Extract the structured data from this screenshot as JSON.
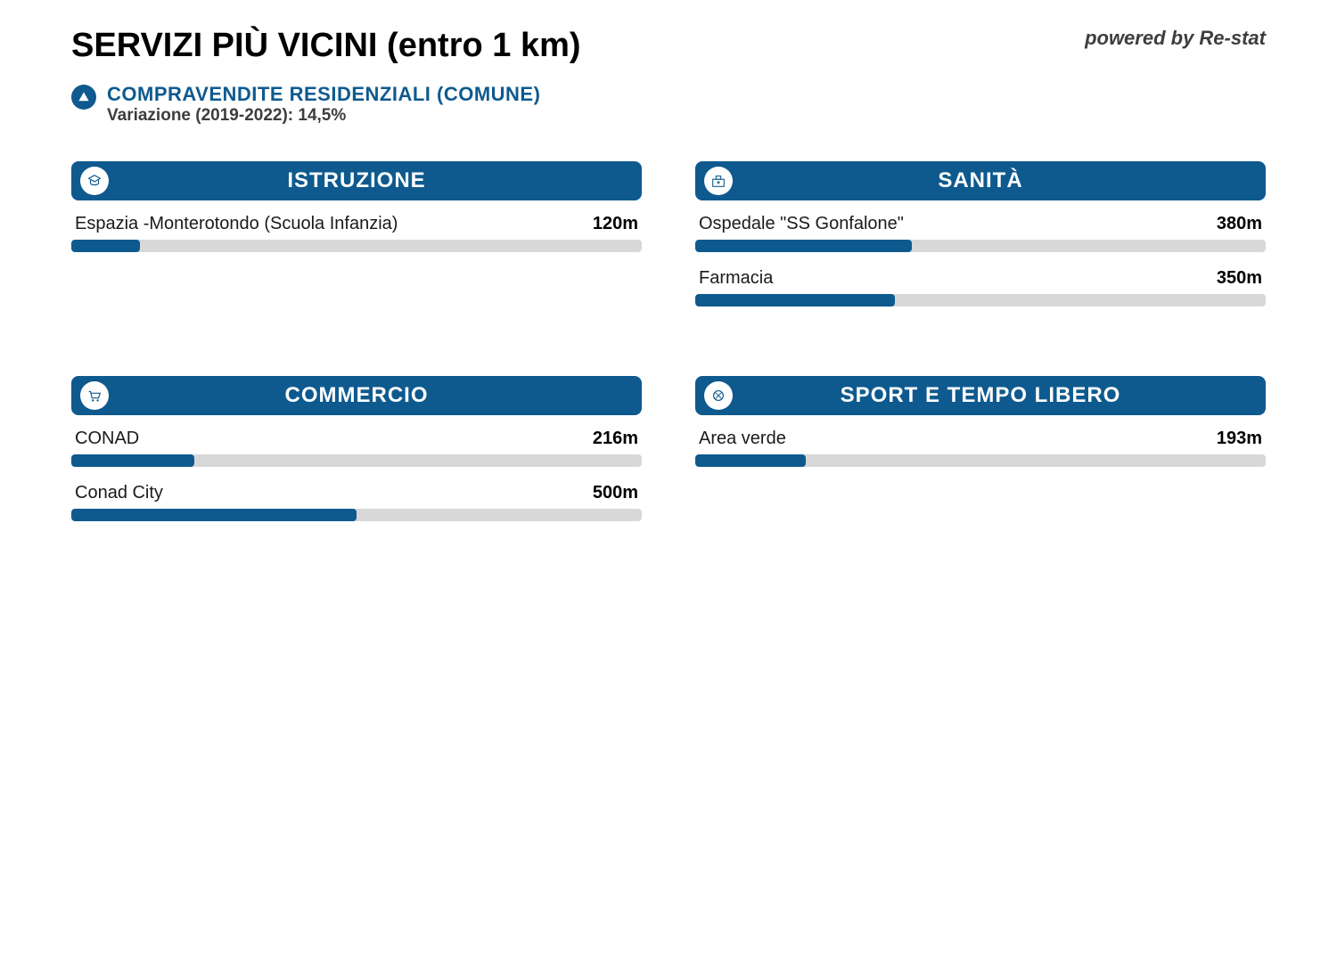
{
  "header": {
    "title": "SERVIZI PIÙ VICINI (entro 1 km)",
    "powered_by": "powered by Re-stat"
  },
  "subheader": {
    "title": "COMPRAVENDITE RESIDENZIALI (COMUNE)",
    "variation": "Variazione (2019-2022): 14,5%"
  },
  "colors": {
    "brand": "#0e5a8f",
    "bar_track": "#d8d8d8",
    "bar_fill": "#0e5a8f",
    "text_dark": "#000000",
    "text_muted": "#3d3d3d"
  },
  "max_distance_m": 1000,
  "categories": [
    {
      "key": "istruzione",
      "title": "ISTRUZIONE",
      "icon": "education-icon",
      "items": [
        {
          "label": "Espazia -Monterotondo (Scuola Infanzia)",
          "value": "120m",
          "distance_m": 120
        }
      ]
    },
    {
      "key": "sanita",
      "title": "SANITÀ",
      "icon": "health-icon",
      "items": [
        {
          "label": "Ospedale \"SS Gonfalone\"",
          "value": "380m",
          "distance_m": 380
        },
        {
          "label": "Farmacia",
          "value": "350m",
          "distance_m": 350
        }
      ]
    },
    {
      "key": "commercio",
      "title": "COMMERCIO",
      "icon": "shopping-icon",
      "items": [
        {
          "label": "CONAD",
          "value": "216m",
          "distance_m": 216
        },
        {
          "label": "Conad City",
          "value": "500m",
          "distance_m": 500
        }
      ]
    },
    {
      "key": "sport",
      "title": "SPORT E TEMPO LIBERO",
      "icon": "leisure-icon",
      "items": [
        {
          "label": "Area verde",
          "value": "193m",
          "distance_m": 193
        }
      ]
    }
  ]
}
